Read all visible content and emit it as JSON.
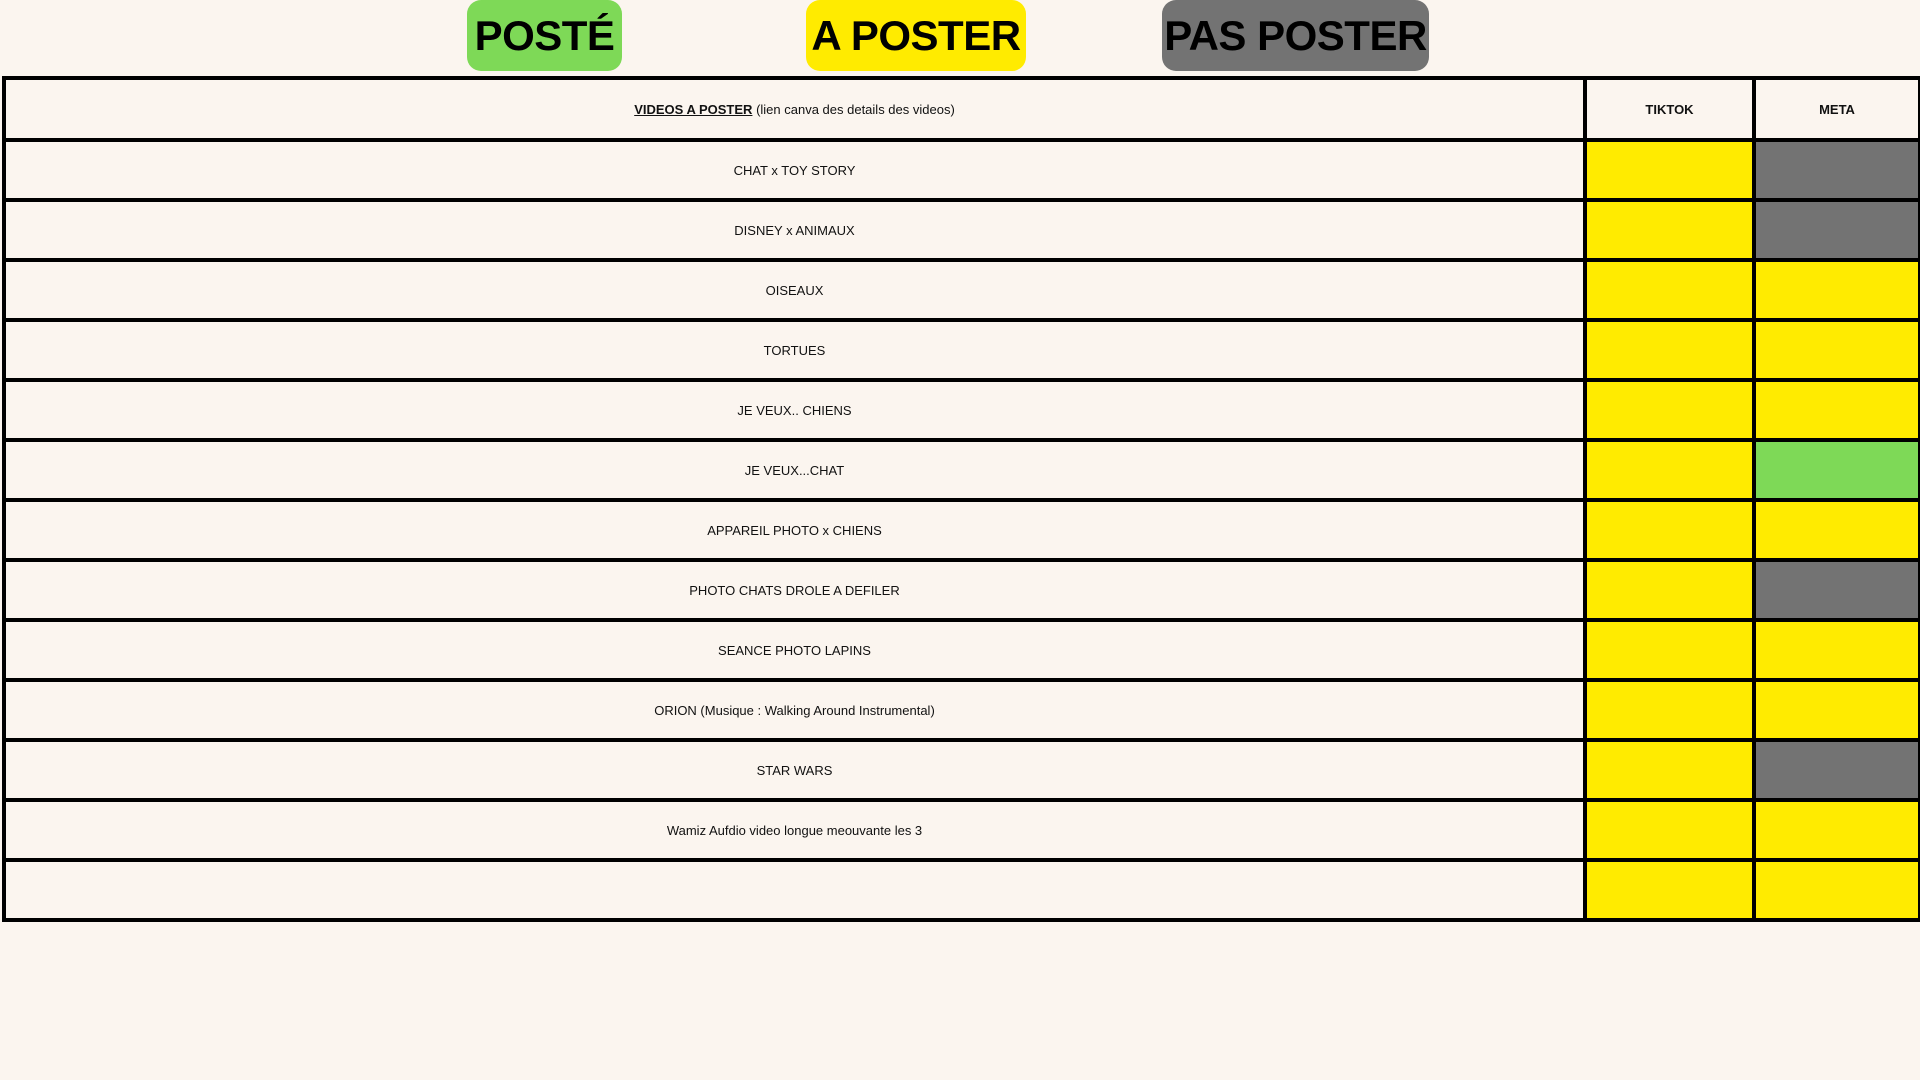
{
  "legend": [
    {
      "label": "POSTÉ",
      "color": "#7ed957"
    },
    {
      "label": "A POSTER",
      "color": "#ffeb00"
    },
    {
      "label": "PAS POSTER",
      "color": "#737373"
    }
  ],
  "table": {
    "header": {
      "title": "VIDEOS A POSTER",
      "subtitle": "(lien canva des details des videos)",
      "col2": "TIKTOK",
      "col3": "META"
    },
    "rows": [
      {
        "name": "CHAT x TOY STORY",
        "tiktok": "A POSTER",
        "meta": "PAS POSTER"
      },
      {
        "name": "DISNEY x ANIMAUX",
        "tiktok": "A POSTER",
        "meta": "PAS POSTER"
      },
      {
        "name": "OISEAUX",
        "tiktok": "A POSTER",
        "meta": "A POSTER"
      },
      {
        "name": "TORTUES",
        "tiktok": "A POSTER",
        "meta": "A POSTER"
      },
      {
        "name": "JE VEUX.. CHIENS",
        "tiktok": "A POSTER",
        "meta": "A POSTER"
      },
      {
        "name": "JE VEUX...CHAT",
        "tiktok": "A POSTER",
        "meta": "POSTÉ"
      },
      {
        "name": "APPAREIL PHOTO x CHIENS",
        "tiktok": "A POSTER",
        "meta": "A POSTER"
      },
      {
        "name": "PHOTO CHATS DROLE A DEFILER",
        "tiktok": "A POSTER",
        "meta": "PAS POSTER"
      },
      {
        "name": "SEANCE PHOTO LAPINS",
        "tiktok": "A POSTER",
        "meta": "A POSTER"
      },
      {
        "name": "ORION (Musique : Walking Around Instrumental)",
        "tiktok": "A POSTER",
        "meta": "A POSTER"
      },
      {
        "name": "STAR WARS",
        "tiktok": "A POSTER",
        "meta": "PAS POSTER"
      },
      {
        "name": "Wamiz Aufdio video longue meouvante les 3",
        "tiktok": "A POSTER",
        "meta": "A POSTER"
      },
      {
        "name": "",
        "tiktok": "A POSTER",
        "meta": "A POSTER"
      }
    ]
  }
}
